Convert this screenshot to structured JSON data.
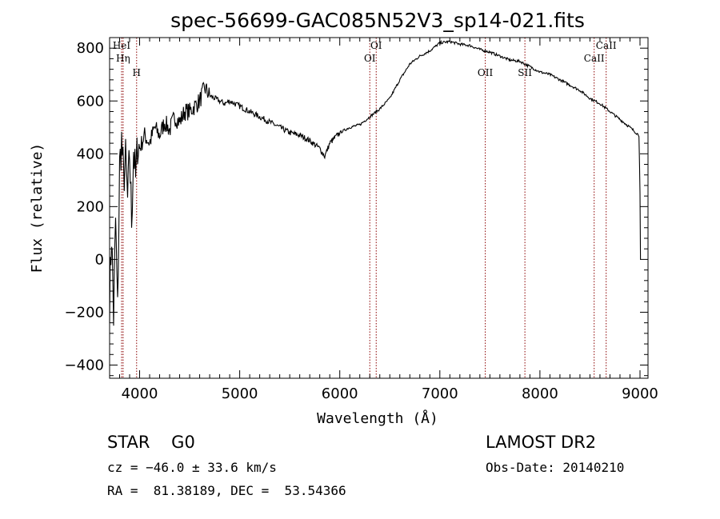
{
  "chart_data": {
    "type": "line",
    "title": "spec-56699-GAC085N52V3_sp14-021.fits",
    "xlabel": "Wavelength (Å)",
    "ylabel": "Flux (relative)",
    "xlim": [
      3700,
      9080
    ],
    "ylim": [
      -450,
      840
    ],
    "x_ticks": [
      4000,
      5000,
      6000,
      7000,
      8000,
      9000
    ],
    "y_ticks": [
      -400,
      -200,
      0,
      200,
      400,
      600,
      800
    ],
    "grid": false,
    "line_color": "#000000",
    "marker_color": "#8b0000",
    "series": [
      {
        "x": [
          3700,
          3720,
          3740,
          3760,
          3780,
          3800,
          3820,
          3840,
          3860,
          3880,
          3900,
          3920,
          3940,
          3960,
          3980,
          4000,
          4050,
          4100,
          4150,
          4200,
          4250,
          4300,
          4350,
          4400,
          4450,
          4500,
          4550,
          4600,
          4650,
          4700,
          4750,
          4800,
          4850,
          4900,
          4950,
          5000,
          5100,
          5200,
          5300,
          5400,
          5500,
          5600,
          5700,
          5800,
          5850,
          5900,
          6000,
          6100,
          6200,
          6300,
          6400,
          6500,
          6600,
          6700,
          6800,
          6900,
          7000,
          7100,
          7200,
          7300,
          7400,
          7500,
          7600,
          7700,
          7800,
          7900,
          8000,
          8100,
          8200,
          8300,
          8400,
          8500,
          8600,
          8700,
          8800,
          8900,
          8960,
          8990,
          9000,
          9005
        ],
        "y": [
          -150,
          100,
          -220,
          150,
          -200,
          350,
          450,
          300,
          380,
          220,
          400,
          150,
          420,
          300,
          440,
          420,
          470,
          440,
          500,
          470,
          520,
          490,
          540,
          520,
          560,
          560,
          580,
          600,
          650,
          620,
          610,
          600,
          590,
          600,
          590,
          580,
          560,
          540,
          520,
          500,
          480,
          470,
          450,
          420,
          390,
          440,
          480,
          500,
          510,
          540,
          570,
          610,
          680,
          740,
          770,
          790,
          820,
          825,
          815,
          810,
          795,
          785,
          770,
          755,
          750,
          730,
          710,
          700,
          680,
          660,
          640,
          610,
          590,
          560,
          530,
          500,
          480,
          470,
          250,
          0
        ]
      }
    ],
    "spectral_lines": [
      {
        "name": "HeI",
        "wavelength": 3820,
        "label_pos": "top"
      },
      {
        "name": "Hη",
        "wavelength": 3835,
        "label_pos": "upper"
      },
      {
        "name": "H",
        "wavelength": 3970,
        "label_pos": "middle"
      },
      {
        "name": "OI",
        "wavelength": 6300,
        "label_pos": "upper"
      },
      {
        "name": "OI",
        "wavelength": 6364,
        "label_pos": "top"
      },
      {
        "name": "OII",
        "wavelength": 7454,
        "label_pos": "middle"
      },
      {
        "name": "SII",
        "wavelength": 7850,
        "label_pos": "middle"
      },
      {
        "name": "CaII",
        "wavelength": 8542,
        "label_pos": "upper"
      },
      {
        "name": "CaII",
        "wavelength": 8662,
        "label_pos": "top"
      }
    ]
  },
  "info": {
    "class": "STAR    G0",
    "cz": "cz = −46.0 ± 33.6 km/s",
    "coords": "RA =  81.38189, DEC =  53.54366",
    "survey": "LAMOST DR2",
    "obs_date": "Obs-Date: 20140210"
  }
}
